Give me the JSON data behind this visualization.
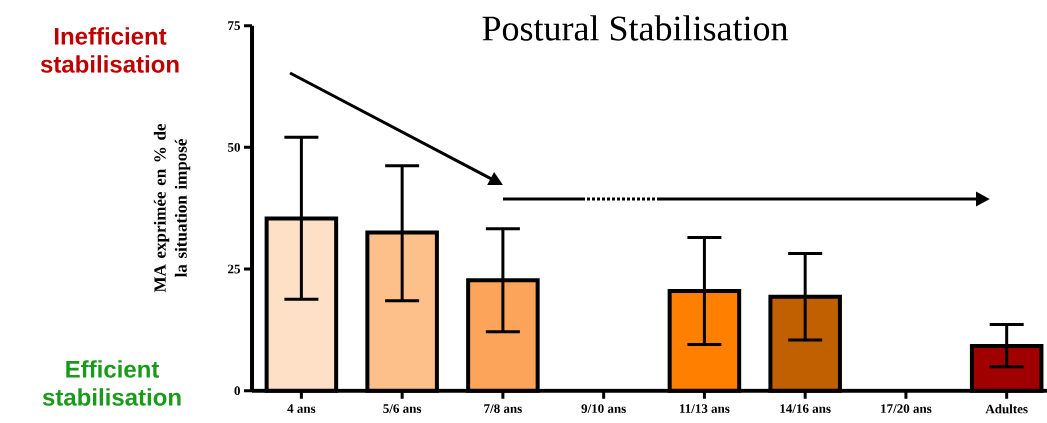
{
  "chart_data": {
    "type": "bar",
    "title": "Postural Stabilisation",
    "ylabel": "MA exprimée en % de la situation imposé",
    "categories": [
      "4 ans",
      "5/6 ans",
      "7/8 ans",
      "9/10 ans",
      "11/13 ans",
      "14/16 ans",
      "17/20 ans",
      "Adultes"
    ],
    "values": [
      35.4,
      32.5,
      22.7,
      null,
      20.5,
      19.3,
      null,
      9.2
    ],
    "errors": [
      [
        18.8,
        52.1
      ],
      [
        18.5,
        46.2
      ],
      [
        12.1,
        33.3
      ],
      null,
      [
        9.5,
        31.5
      ],
      [
        10.4,
        28.2
      ],
      null,
      [
        4.9,
        13.6
      ]
    ],
    "colors": [
      "#fde0c5",
      "#fdc08a",
      "#fca55a",
      "#ffffff",
      "#ff8000",
      "#c06000",
      "#ffffff",
      "#a00000"
    ],
    "ylim": [
      0,
      75
    ],
    "yticks": [
      0,
      25,
      50,
      75
    ],
    "annotations": [
      "Inefficient stabilisation",
      "Efficient stabilisation"
    ]
  }
}
